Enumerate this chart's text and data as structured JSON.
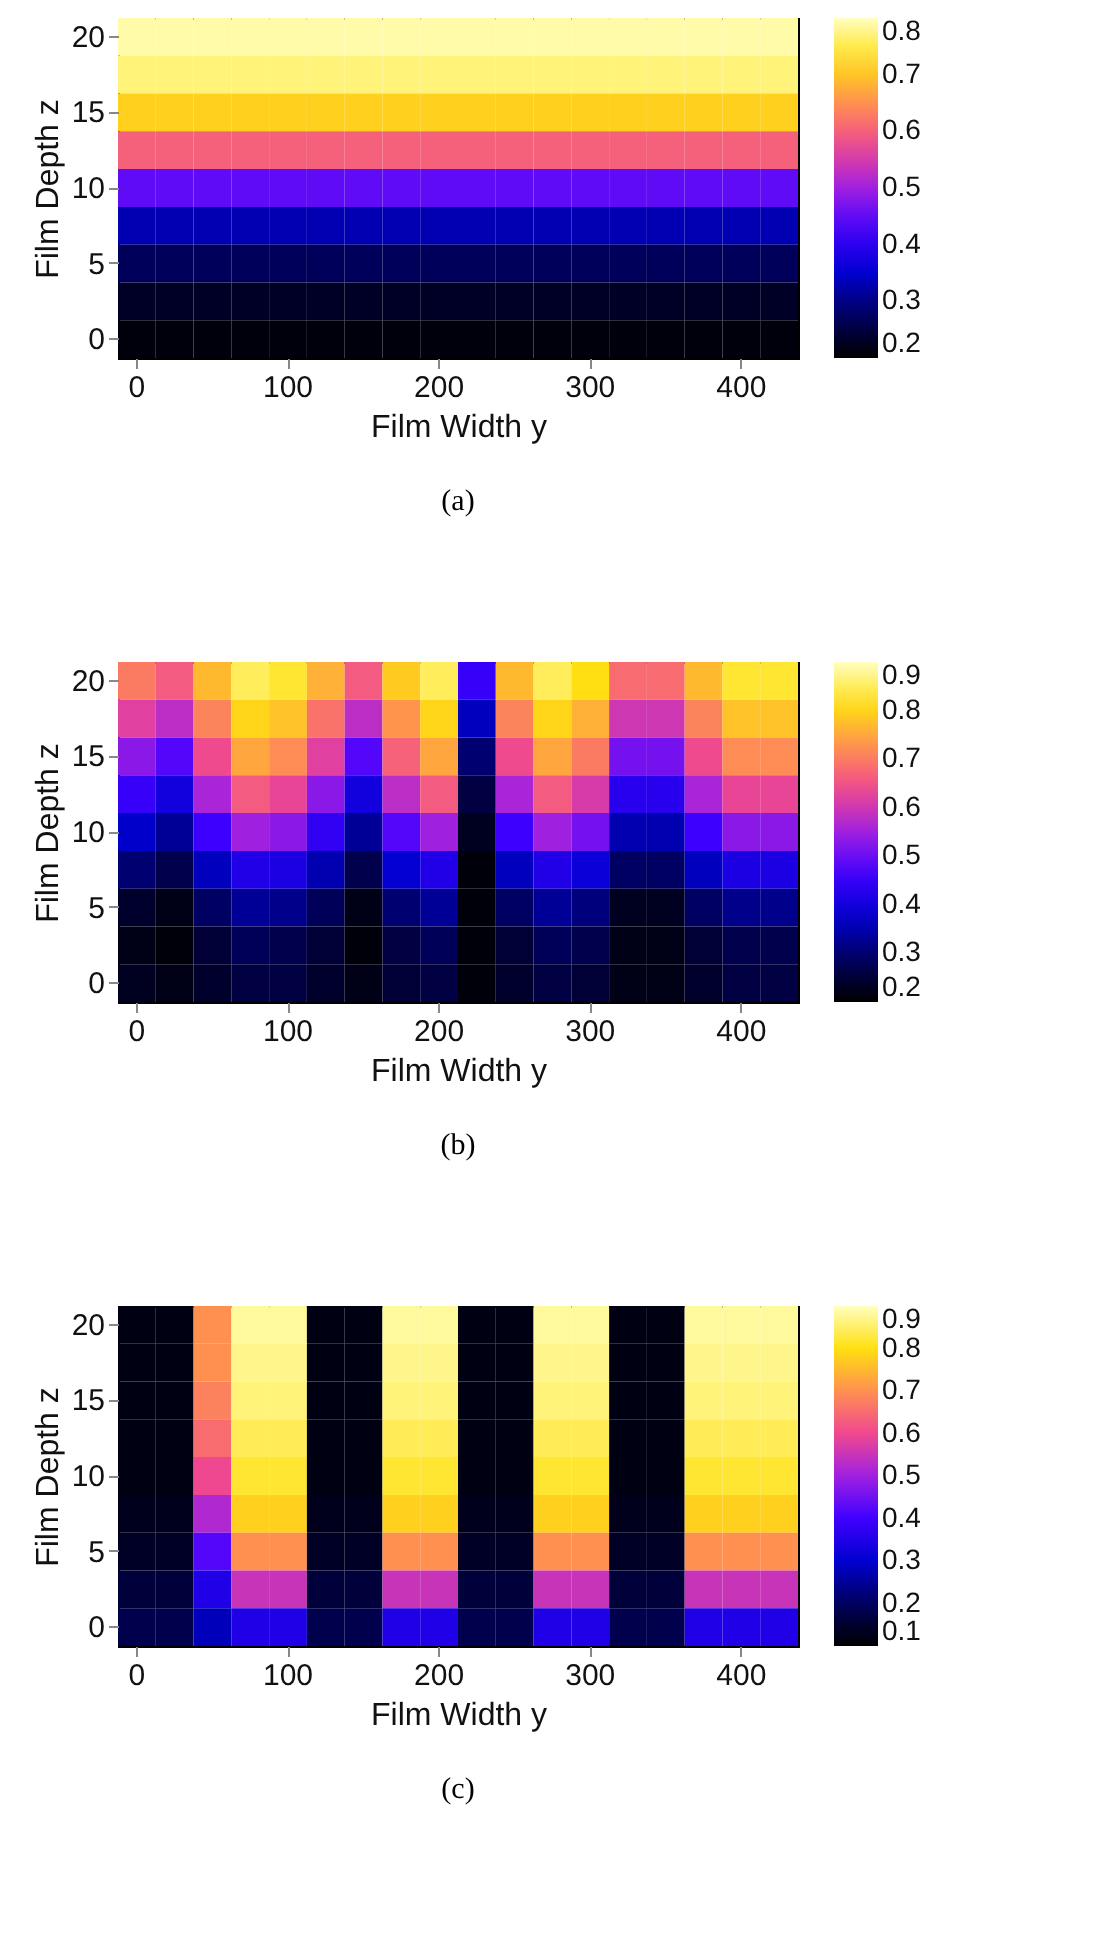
{
  "chart_data": [
    {
      "type": "heatmap",
      "xlabel": "Film Width y",
      "ylabel": "Film Depth z",
      "annotations": [
        "(a)"
      ],
      "categories": [
        "0",
        null,
        null,
        null,
        "100",
        null,
        null,
        null,
        "200",
        null,
        null,
        null,
        "300",
        null,
        null,
        null,
        "400",
        null
      ],
      "y_categories": [
        "20",
        null,
        "15",
        null,
        "10",
        null,
        "5",
        null,
        "0"
      ],
      "clim": [
        0.2,
        0.8
      ],
      "cticks": [
        0.2,
        0.3,
        0.4,
        0.5,
        0.6,
        0.7,
        0.8
      ],
      "cells": [
        [
          0.79,
          0.79,
          0.79,
          0.79,
          0.79,
          0.79,
          0.79,
          0.79,
          0.79,
          0.79,
          0.79,
          0.79,
          0.79,
          0.79,
          0.79,
          0.79,
          0.79,
          0.79
        ],
        [
          0.77,
          0.77,
          0.77,
          0.77,
          0.77,
          0.77,
          0.77,
          0.77,
          0.77,
          0.77,
          0.77,
          0.77,
          0.77,
          0.77,
          0.77,
          0.77,
          0.77,
          0.77
        ],
        [
          0.71,
          0.71,
          0.71,
          0.71,
          0.71,
          0.71,
          0.71,
          0.71,
          0.71,
          0.71,
          0.71,
          0.71,
          0.71,
          0.71,
          0.71,
          0.71,
          0.71,
          0.71
        ],
        [
          0.6,
          0.6,
          0.6,
          0.6,
          0.6,
          0.6,
          0.6,
          0.6,
          0.6,
          0.6,
          0.6,
          0.6,
          0.6,
          0.6,
          0.6,
          0.6,
          0.6,
          0.6
        ],
        [
          0.45,
          0.45,
          0.45,
          0.45,
          0.45,
          0.45,
          0.45,
          0.45,
          0.45,
          0.45,
          0.45,
          0.45,
          0.45,
          0.45,
          0.45,
          0.45,
          0.45,
          0.45
        ],
        [
          0.33,
          0.33,
          0.33,
          0.33,
          0.33,
          0.33,
          0.33,
          0.33,
          0.33,
          0.33,
          0.33,
          0.33,
          0.33,
          0.33,
          0.33,
          0.33,
          0.33,
          0.33
        ],
        [
          0.27,
          0.27,
          0.27,
          0.27,
          0.27,
          0.27,
          0.27,
          0.27,
          0.27,
          0.27,
          0.27,
          0.27,
          0.27,
          0.27,
          0.27,
          0.27,
          0.27,
          0.27
        ],
        [
          0.23,
          0.23,
          0.23,
          0.23,
          0.23,
          0.23,
          0.23,
          0.23,
          0.23,
          0.23,
          0.23,
          0.23,
          0.23,
          0.23,
          0.23,
          0.23,
          0.23,
          0.23
        ],
        [
          0.21,
          0.21,
          0.21,
          0.21,
          0.21,
          0.21,
          0.21,
          0.21,
          0.21,
          0.21,
          0.21,
          0.21,
          0.21,
          0.21,
          0.21,
          0.21,
          0.21,
          0.21
        ]
      ]
    },
    {
      "type": "heatmap",
      "xlabel": "Film Width y",
      "ylabel": "Film Depth z",
      "annotations": [
        "(b)"
      ],
      "categories": [
        "0",
        null,
        null,
        null,
        "100",
        null,
        null,
        null,
        "200",
        null,
        null,
        null,
        "300",
        null,
        null,
        null,
        "400",
        null
      ],
      "y_categories": [
        "20",
        null,
        "15",
        null,
        "10",
        null,
        "5",
        null,
        "0"
      ],
      "clim": [
        0.2,
        0.9
      ],
      "cticks": [
        0.2,
        0.3,
        0.4,
        0.5,
        0.6,
        0.7,
        0.8,
        0.9
      ],
      "cells": [
        [
          0.7,
          0.66,
          0.77,
          0.85,
          0.83,
          0.76,
          0.66,
          0.79,
          0.85,
          0.45,
          0.77,
          0.85,
          0.81,
          0.68,
          0.68,
          0.77,
          0.83,
          0.83
        ],
        [
          0.62,
          0.58,
          0.71,
          0.8,
          0.78,
          0.69,
          0.58,
          0.73,
          0.8,
          0.36,
          0.71,
          0.8,
          0.76,
          0.6,
          0.6,
          0.71,
          0.78,
          0.78
        ],
        [
          0.53,
          0.48,
          0.64,
          0.75,
          0.72,
          0.62,
          0.48,
          0.67,
          0.75,
          0.3,
          0.64,
          0.75,
          0.7,
          0.51,
          0.51,
          0.64,
          0.72,
          0.72
        ],
        [
          0.45,
          0.4,
          0.56,
          0.66,
          0.63,
          0.53,
          0.4,
          0.58,
          0.66,
          0.26,
          0.56,
          0.66,
          0.61,
          0.43,
          0.43,
          0.56,
          0.63,
          0.63
        ],
        [
          0.37,
          0.33,
          0.46,
          0.55,
          0.53,
          0.44,
          0.33,
          0.48,
          0.55,
          0.23,
          0.46,
          0.55,
          0.51,
          0.35,
          0.35,
          0.46,
          0.53,
          0.53
        ],
        [
          0.3,
          0.27,
          0.36,
          0.42,
          0.41,
          0.35,
          0.27,
          0.38,
          0.42,
          0.21,
          0.36,
          0.42,
          0.39,
          0.29,
          0.29,
          0.36,
          0.41,
          0.41
        ],
        [
          0.24,
          0.22,
          0.29,
          0.33,
          0.32,
          0.28,
          0.22,
          0.3,
          0.33,
          0.21,
          0.29,
          0.33,
          0.31,
          0.23,
          0.23,
          0.29,
          0.32,
          0.32
        ],
        [
          0.22,
          0.21,
          0.25,
          0.28,
          0.27,
          0.25,
          0.21,
          0.26,
          0.28,
          0.21,
          0.25,
          0.28,
          0.27,
          0.22,
          0.22,
          0.25,
          0.27,
          0.27
        ],
        [
          0.23,
          0.22,
          0.24,
          0.26,
          0.26,
          0.24,
          0.22,
          0.25,
          0.26,
          0.21,
          0.24,
          0.26,
          0.25,
          0.22,
          0.22,
          0.24,
          0.26,
          0.26
        ]
      ]
    },
    {
      "type": "heatmap",
      "xlabel": "Film Width y",
      "ylabel": "Film Depth z",
      "annotations": [
        "(c)"
      ],
      "categories": [
        "0",
        null,
        null,
        null,
        "100",
        null,
        null,
        null,
        "200",
        null,
        null,
        null,
        "300",
        null,
        null,
        null,
        "400",
        null
      ],
      "y_categories": [
        "20",
        null,
        "15",
        null,
        "10",
        null,
        "5",
        null,
        "0"
      ],
      "clim": [
        0.1,
        0.9
      ],
      "cticks": [
        0.1,
        0.2,
        0.3,
        0.4,
        0.5,
        0.6,
        0.7,
        0.8,
        0.9
      ],
      "cells": [
        [
          0.12,
          0.12,
          0.7,
          0.88,
          0.88,
          0.12,
          0.12,
          0.88,
          0.88,
          0.12,
          0.12,
          0.88,
          0.88,
          0.12,
          0.12,
          0.88,
          0.88,
          0.88
        ],
        [
          0.12,
          0.12,
          0.7,
          0.87,
          0.87,
          0.12,
          0.12,
          0.87,
          0.87,
          0.12,
          0.12,
          0.87,
          0.87,
          0.12,
          0.12,
          0.87,
          0.87,
          0.87
        ],
        [
          0.12,
          0.12,
          0.68,
          0.86,
          0.86,
          0.12,
          0.12,
          0.86,
          0.86,
          0.12,
          0.12,
          0.86,
          0.86,
          0.12,
          0.12,
          0.86,
          0.86,
          0.86
        ],
        [
          0.12,
          0.12,
          0.65,
          0.84,
          0.84,
          0.12,
          0.12,
          0.84,
          0.84,
          0.12,
          0.12,
          0.84,
          0.84,
          0.12,
          0.12,
          0.84,
          0.84,
          0.84
        ],
        [
          0.12,
          0.12,
          0.6,
          0.82,
          0.82,
          0.12,
          0.12,
          0.82,
          0.82,
          0.12,
          0.12,
          0.82,
          0.82,
          0.12,
          0.12,
          0.82,
          0.82,
          0.82
        ],
        [
          0.13,
          0.13,
          0.52,
          0.78,
          0.78,
          0.13,
          0.13,
          0.78,
          0.78,
          0.13,
          0.13,
          0.78,
          0.78,
          0.13,
          0.13,
          0.78,
          0.78,
          0.78
        ],
        [
          0.14,
          0.14,
          0.42,
          0.7,
          0.7,
          0.14,
          0.14,
          0.7,
          0.7,
          0.14,
          0.14,
          0.7,
          0.7,
          0.14,
          0.14,
          0.7,
          0.7,
          0.7
        ],
        [
          0.16,
          0.16,
          0.35,
          0.55,
          0.55,
          0.16,
          0.16,
          0.55,
          0.55,
          0.16,
          0.16,
          0.55,
          0.55,
          0.16,
          0.16,
          0.55,
          0.55,
          0.55
        ],
        [
          0.18,
          0.18,
          0.28,
          0.35,
          0.35,
          0.18,
          0.18,
          0.35,
          0.35,
          0.18,
          0.18,
          0.35,
          0.35,
          0.18,
          0.18,
          0.35,
          0.35,
          0.35
        ]
      ]
    }
  ]
}
